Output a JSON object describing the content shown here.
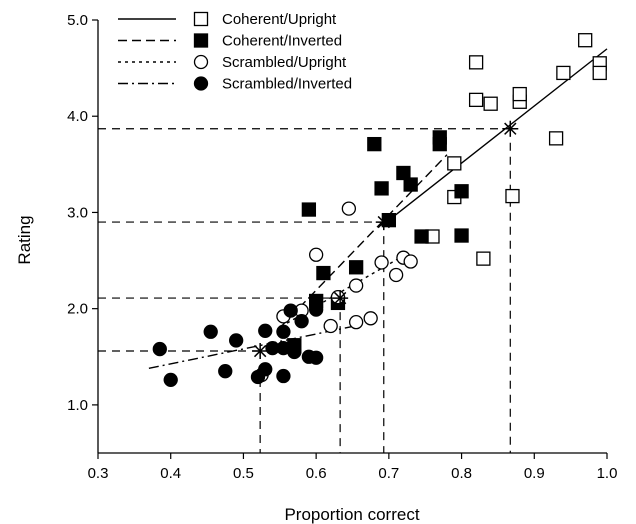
{
  "chart_data": {
    "type": "scatter",
    "xlabel": "Proportion correct",
    "ylabel": "Rating",
    "xlim": [
      0.3,
      1.0
    ],
    "ylim": [
      0.5,
      5.0
    ],
    "xticks": [
      0.3,
      0.4,
      0.5,
      0.6,
      0.7,
      0.8,
      0.9,
      1.0
    ],
    "yticks": [
      1.0,
      2.0,
      3.0,
      4.0,
      5.0
    ],
    "xtick_labels": [
      "0.3",
      "0.4",
      "0.5",
      "0.6",
      "0.7",
      "0.8",
      "0.9",
      "1.0"
    ],
    "ytick_labels": [
      "1.0",
      "2.0",
      "3.0",
      "4.0",
      "5.0"
    ],
    "grid": false,
    "legend_position": "top-left",
    "series": [
      {
        "name": "Coherent/Upright",
        "marker": "open-square",
        "line_style": "solid",
        "points": [
          [
            0.79,
            3.51
          ],
          [
            0.76,
            2.75
          ],
          [
            0.79,
            3.16
          ],
          [
            0.82,
            4.56
          ],
          [
            0.83,
            2.52
          ],
          [
            0.82,
            4.17
          ],
          [
            0.84,
            4.13
          ],
          [
            0.87,
            3.17
          ],
          [
            0.88,
            4.15
          ],
          [
            0.88,
            4.23
          ],
          [
            0.93,
            3.77
          ],
          [
            0.94,
            4.45
          ],
          [
            0.97,
            4.79
          ],
          [
            0.99,
            4.55
          ],
          [
            0.99,
            4.45
          ]
        ],
        "fit_line": [
          [
            0.69,
            2.86
          ],
          [
            1.0,
            4.7
          ]
        ],
        "mean_point": [
          0.867,
          3.87
        ]
      },
      {
        "name": "Coherent/Inverted",
        "marker": "filled-square",
        "line_style": "dashed",
        "points": [
          [
            0.59,
            3.03
          ],
          [
            0.6,
            2.08
          ],
          [
            0.61,
            2.37
          ],
          [
            0.63,
            2.06
          ],
          [
            0.655,
            2.43
          ],
          [
            0.68,
            3.71
          ],
          [
            0.69,
            3.25
          ],
          [
            0.7,
            2.92
          ],
          [
            0.72,
            3.41
          ],
          [
            0.73,
            3.29
          ],
          [
            0.745,
            2.75
          ],
          [
            0.77,
            3.78
          ],
          [
            0.77,
            3.71
          ],
          [
            0.8,
            3.22
          ],
          [
            0.8,
            2.76
          ],
          [
            0.57,
            1.62
          ]
        ],
        "fit_line": [
          [
            0.55,
            1.8
          ],
          [
            0.78,
            3.6
          ]
        ],
        "mean_point": [
          0.693,
          2.9
        ]
      },
      {
        "name": "Scrambled/Upright",
        "marker": "open-circle",
        "line_style": "dotted",
        "points": [
          [
            0.525,
            1.31
          ],
          [
            0.555,
            1.92
          ],
          [
            0.58,
            1.98
          ],
          [
            0.6,
            2.56
          ],
          [
            0.62,
            1.82
          ],
          [
            0.63,
            2.12
          ],
          [
            0.645,
            3.04
          ],
          [
            0.655,
            1.86
          ],
          [
            0.655,
            2.24
          ],
          [
            0.675,
            1.9
          ],
          [
            0.69,
            2.48
          ],
          [
            0.71,
            2.35
          ],
          [
            0.72,
            2.53
          ],
          [
            0.73,
            2.49
          ],
          [
            0.57,
            1.55
          ]
        ],
        "fit_line": [
          [
            0.56,
            1.85
          ],
          [
            0.72,
            2.55
          ]
        ],
        "mean_point": [
          0.633,
          2.11
        ]
      },
      {
        "name": "Scrambled/Inverted",
        "marker": "filled-circle",
        "line_style": "dash-dot",
        "points": [
          [
            0.385,
            1.58
          ],
          [
            0.4,
            1.26
          ],
          [
            0.455,
            1.76
          ],
          [
            0.475,
            1.35
          ],
          [
            0.49,
            1.67
          ],
          [
            0.52,
            1.29
          ],
          [
            0.53,
            1.37
          ],
          [
            0.53,
            1.77
          ],
          [
            0.54,
            1.59
          ],
          [
            0.555,
            1.76
          ],
          [
            0.555,
            1.59
          ],
          [
            0.555,
            1.3
          ],
          [
            0.565,
            1.98
          ],
          [
            0.58,
            1.87
          ],
          [
            0.59,
            1.5
          ],
          [
            0.6,
            1.49
          ],
          [
            0.6,
            1.99
          ],
          [
            0.57,
            1.56
          ]
        ],
        "fit_line": [
          [
            0.37,
            1.38
          ],
          [
            0.66,
            1.83
          ]
        ],
        "mean_point": [
          0.523,
          1.56
        ]
      }
    ],
    "reference_lines": [
      {
        "mean_point": [
          0.867,
          3.87
        ]
      },
      {
        "mean_point": [
          0.693,
          2.9
        ]
      },
      {
        "mean_point": [
          0.633,
          2.11
        ]
      },
      {
        "mean_point": [
          0.523,
          1.56
        ]
      }
    ],
    "colors": {
      "ink": "#000000",
      "background": "#ffffff"
    }
  }
}
